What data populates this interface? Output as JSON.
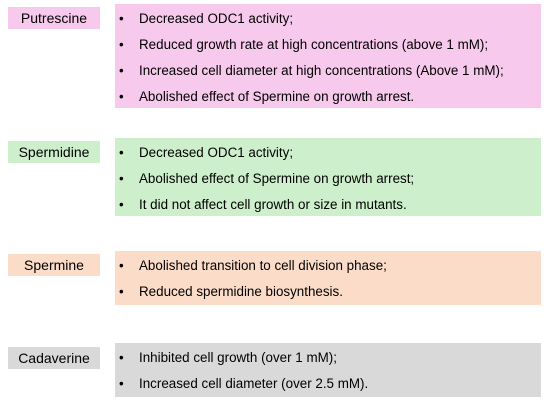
{
  "colors": {
    "putrescine": "#f7c9ec",
    "spermidine": "#cdefcc",
    "spermine": "#fbdcc8",
    "cadaverine": "#d9d9d9"
  },
  "bullet_glyph": "•",
  "groups": [
    {
      "name": "Putrescine",
      "color_key": "putrescine",
      "items": [
        "Decreased ODC1 activity;",
        "Reduced growth rate at high concentrations (above 1 mM);",
        "Increased cell diameter at high concentrations (Above 1 mM);",
        "Abolished effect of Spermine on growth arrest."
      ]
    },
    {
      "name": "Spermidine",
      "color_key": "spermidine",
      "items": [
        "Decreased ODC1 activity;",
        "Abolished effect of Spermine on growth arrest;",
        "It did not affect cell growth or size in mutants."
      ]
    },
    {
      "name": "Spermine",
      "color_key": "spermine",
      "items": [
        "Abolished transition to cell division phase;",
        "Reduced spermidine biosynthesis."
      ]
    },
    {
      "name": "Cadaverine",
      "color_key": "cadaverine",
      "items": [
        "Inhibited cell growth (over 1 mM);",
        "Increased cell diameter (over 2.5 mM)."
      ]
    }
  ]
}
